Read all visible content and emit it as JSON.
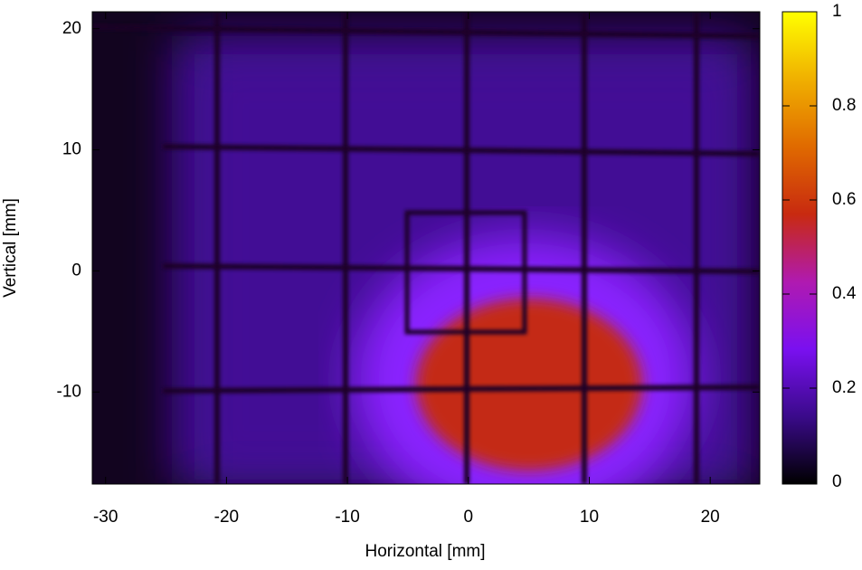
{
  "chart_data": {
    "type": "heatmap",
    "x_label": "Horizontal [mm]",
    "y_label": "Vertical [mm]",
    "xlim": [
      -31.1,
      24.1
    ],
    "xticks": [
      -30,
      -20,
      -10,
      0,
      10,
      20
    ],
    "ylim": [
      -17.6,
      21.4
    ],
    "yticks": [
      -10,
      0,
      10,
      20
    ],
    "colorbar": {
      "lim": [
        0,
        1
      ],
      "ticks": [
        0,
        0.2,
        0.4,
        0.6,
        0.8,
        1
      ],
      "colors": [
        "#000000",
        "#3a0a8a",
        "#7a10f0",
        "#b01ab0",
        "#c82a10",
        "#e06a00",
        "#f0b000",
        "#ffff00"
      ]
    }
  }
}
